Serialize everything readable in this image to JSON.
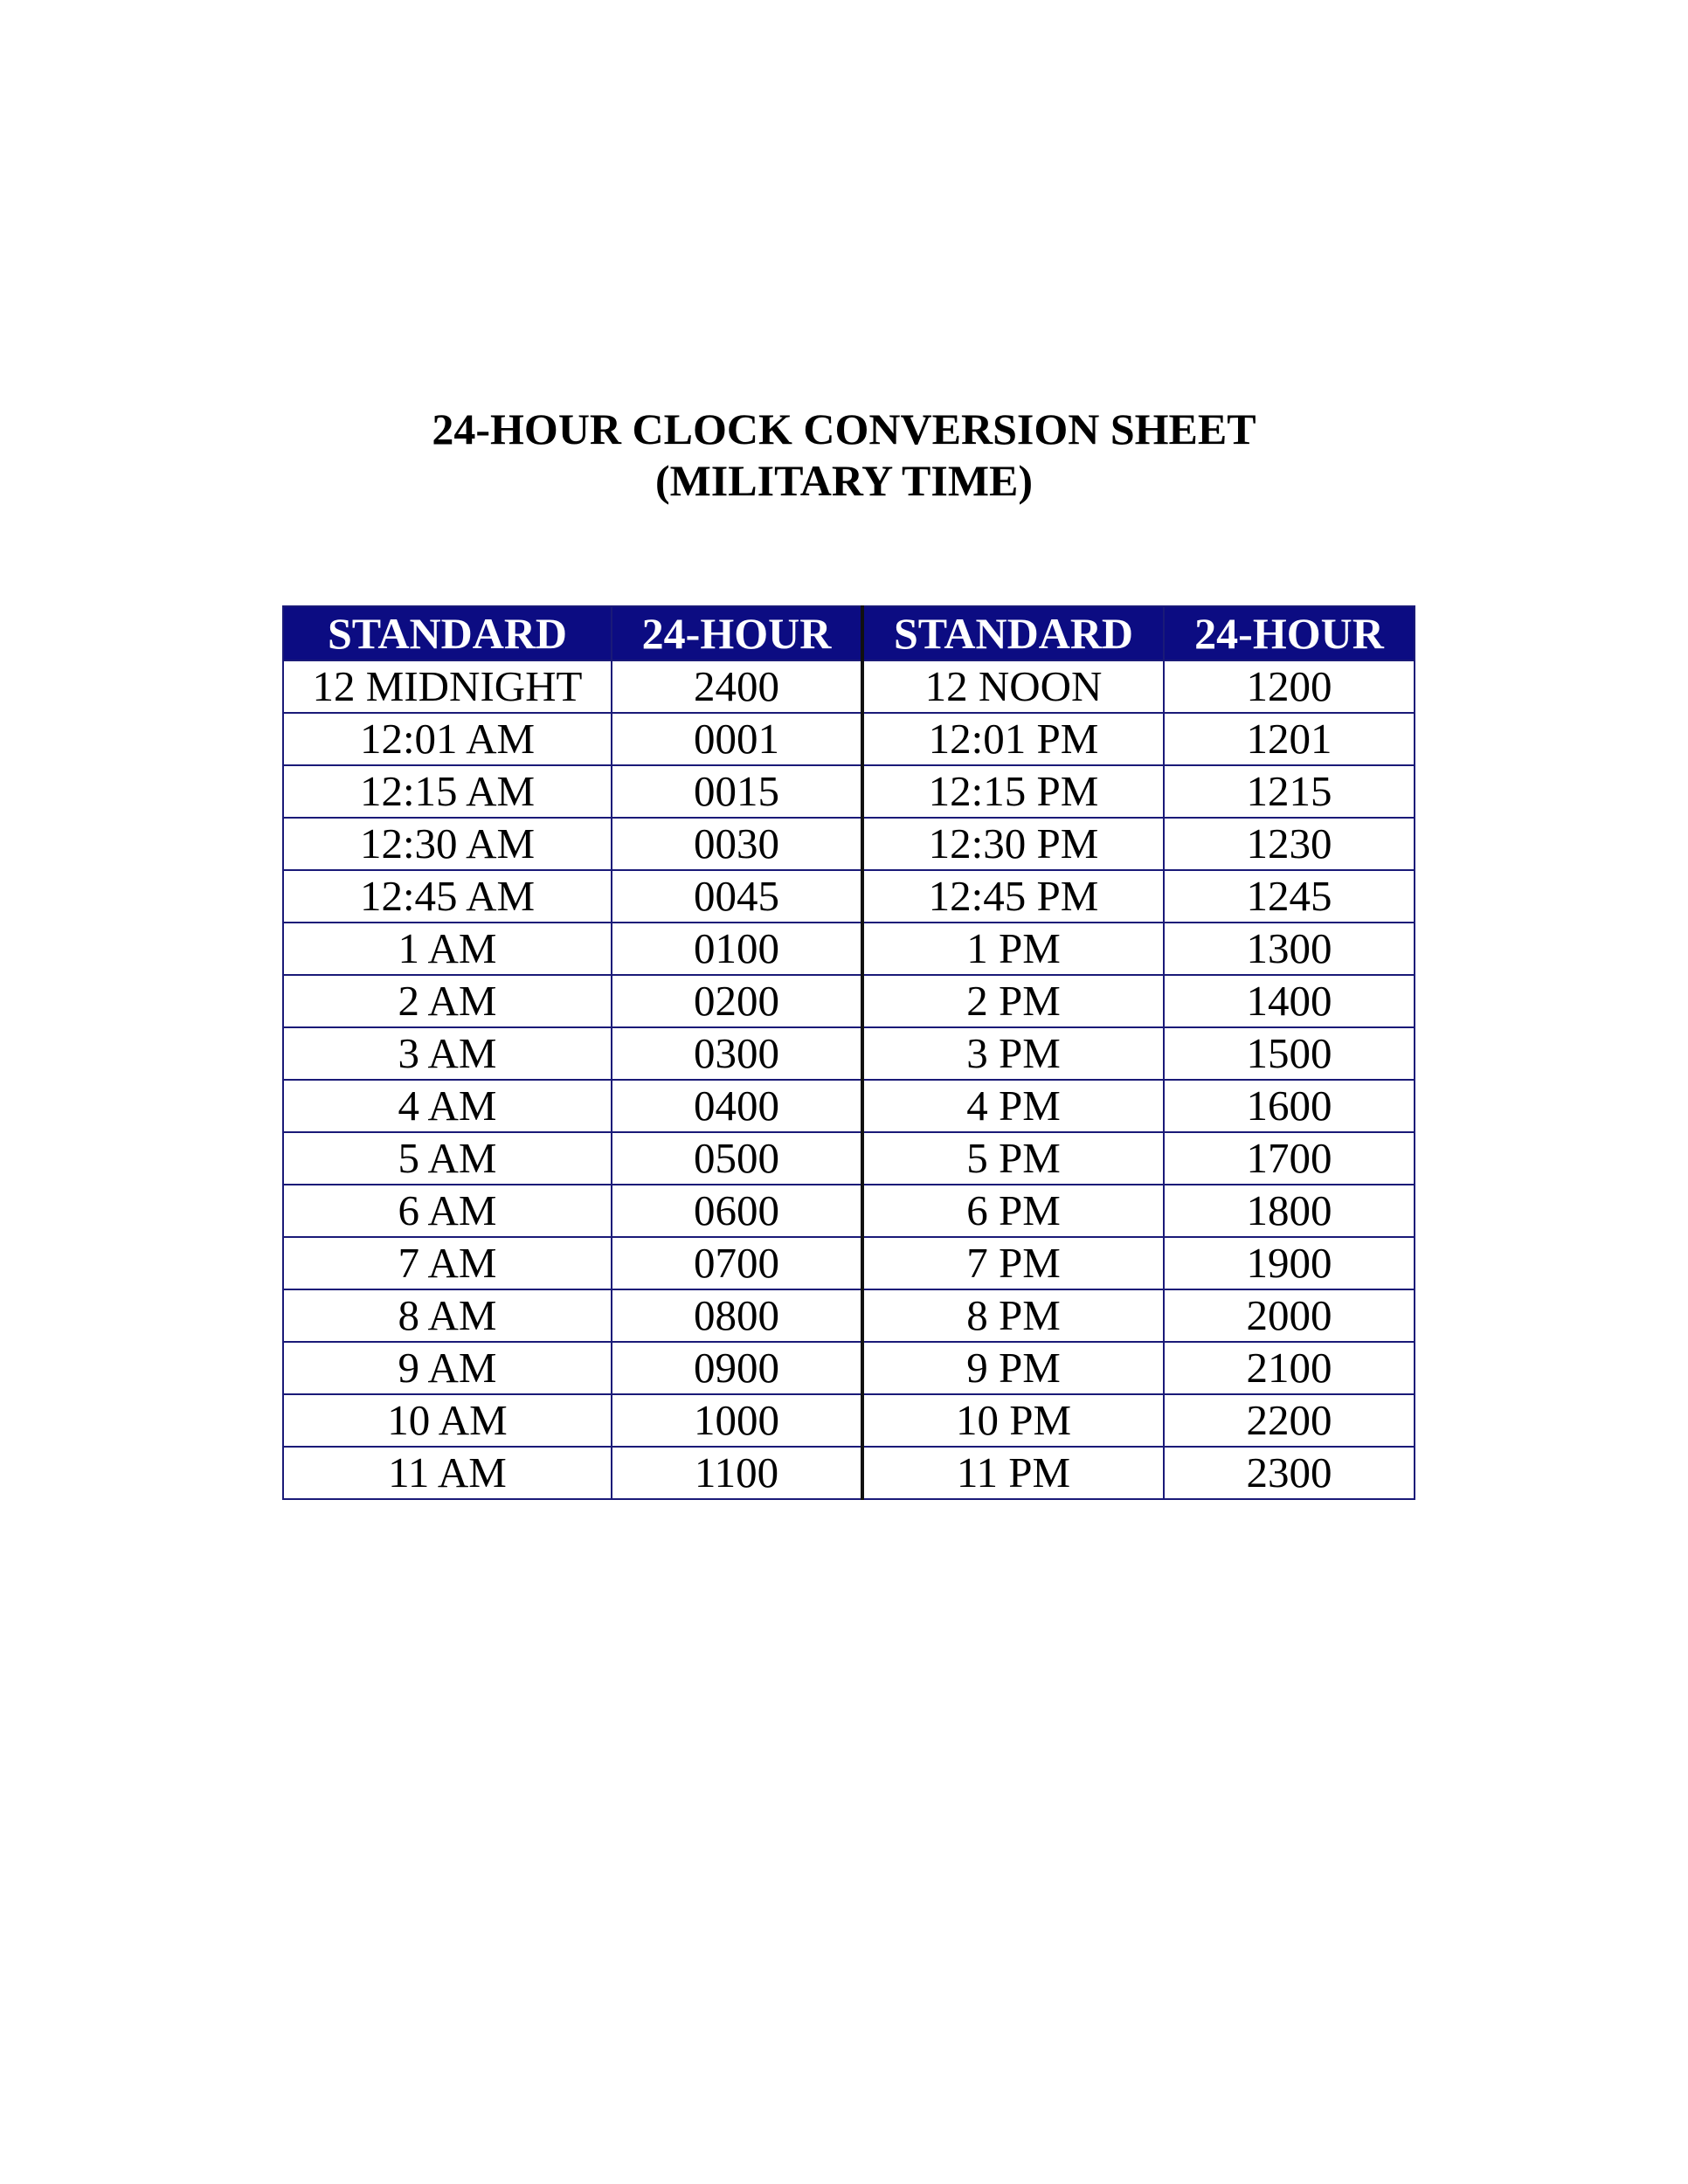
{
  "title": {
    "line1": "24-HOUR CLOCK CONVERSION SHEET",
    "line2": "(MILITARY TIME)"
  },
  "colors": {
    "header_bg": "#0c0c82",
    "header_text": "#ffffff",
    "border": "#1a1a78"
  },
  "table": {
    "headers": [
      "STANDARD",
      "24-HOUR",
      "STANDARD",
      "24-HOUR"
    ],
    "rows": [
      [
        "12 MIDNIGHT",
        "2400",
        "12 NOON",
        "1200"
      ],
      [
        "12:01 AM",
        "0001",
        "12:01 PM",
        "1201"
      ],
      [
        "12:15 AM",
        "0015",
        "12:15 PM",
        "1215"
      ],
      [
        "12:30 AM",
        "0030",
        "12:30 PM",
        "1230"
      ],
      [
        "12:45 AM",
        "0045",
        "12:45 PM",
        "1245"
      ],
      [
        "1 AM",
        "0100",
        "1 PM",
        "1300"
      ],
      [
        "2 AM",
        "0200",
        "2 PM",
        "1400"
      ],
      [
        "3 AM",
        "0300",
        "3 PM",
        "1500"
      ],
      [
        "4 AM",
        "0400",
        "4 PM",
        "1600"
      ],
      [
        "5 AM",
        "0500",
        "5 PM",
        "1700"
      ],
      [
        "6 AM",
        "0600",
        "6 PM",
        "1800"
      ],
      [
        "7 AM",
        "0700",
        "7 PM",
        "1900"
      ],
      [
        "8 AM",
        "0800",
        "8 PM",
        "2000"
      ],
      [
        "9 AM",
        "0900",
        "9 PM",
        "2100"
      ],
      [
        "10 AM",
        "1000",
        "10 PM",
        "2200"
      ],
      [
        "11 AM",
        "1100",
        "11 PM",
        "2300"
      ]
    ]
  }
}
